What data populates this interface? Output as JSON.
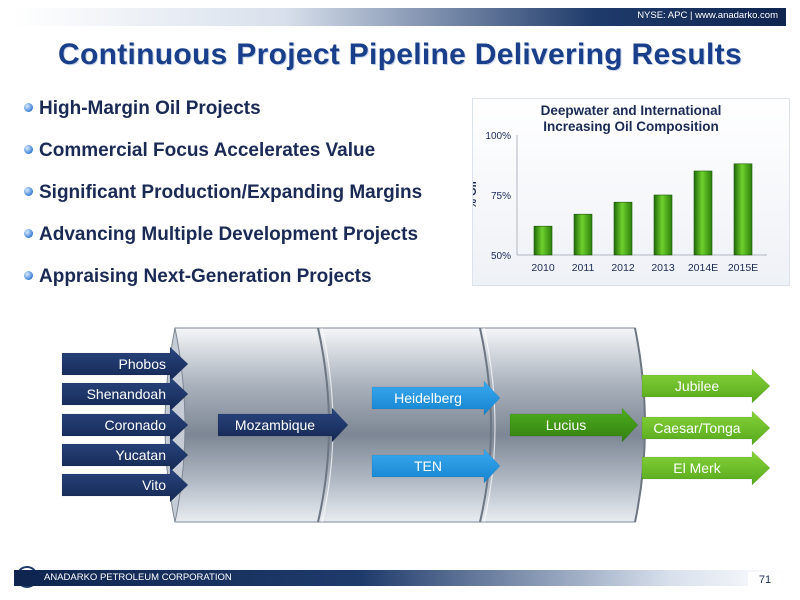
{
  "header": {
    "ticker_text": "NYSE: APC | www.anadarko.com"
  },
  "title": "Continuous Project Pipeline Delivering Results",
  "bullets": [
    "High-Margin Oil Projects",
    "Commercial Focus Accelerates Value",
    "Significant Production/Expanding Margins",
    "Advancing Multiple Development Projects",
    "Appraising Next-Generation Projects"
  ],
  "chart_data": {
    "type": "bar",
    "title": "Deepwater and International Increasing Oil Composition",
    "title_lines": [
      "Deepwater and International",
      "Increasing Oil Composition"
    ],
    "xlabel": "",
    "ylabel": "% Oil",
    "categories": [
      "2010",
      "2011",
      "2012",
      "2013",
      "2014E",
      "2015E"
    ],
    "values": [
      62,
      67,
      72,
      75,
      85,
      88
    ],
    "ylim": [
      50,
      100
    ],
    "yticks": [
      50,
      75,
      100
    ],
    "ytick_labels": [
      "50%",
      "75%",
      "100%"
    ],
    "grid": false,
    "bar_color": "#3a9a1a"
  },
  "pipeline": {
    "inputs": [
      "Phobos",
      "Shenandoah",
      "Coronado",
      "Yucatan",
      "Vito"
    ],
    "stage1": [
      "Mozambique"
    ],
    "stage2": [
      "Heidelberg",
      "TEN"
    ],
    "stage3": [
      "Lucius"
    ],
    "outputs": [
      "Jubilee",
      "Caesar/Tonga",
      "El Merk"
    ],
    "colors": {
      "navy": "#1b2f5e",
      "blue": "#1d8fd6",
      "green": "#3f9a14",
      "light_green": "#6dbb2a"
    }
  },
  "footer": {
    "company": "ANADARKO PETROLEUM CORPORATION",
    "page_number": "71"
  }
}
